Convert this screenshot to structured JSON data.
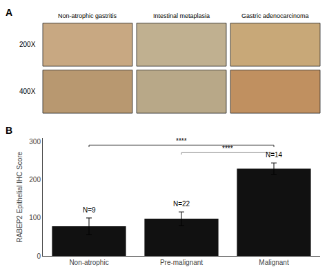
{
  "chart_data": {
    "type": "bar",
    "categories": [
      "Non-atrophic",
      "Pre-malignant",
      "Malignant"
    ],
    "values": [
      78,
      98,
      230
    ],
    "errors": [
      22,
      18,
      15
    ],
    "n_labels": [
      "N=9",
      "N=22",
      "N=14"
    ],
    "color": "#111111",
    "ylabel": "RABEP2 Epithelial IHC Score",
    "ylim": [
      0,
      310
    ],
    "yticks": [
      0,
      100,
      200,
      300
    ],
    "grid": false,
    "significance": [
      {
        "from": "Non-atrophic",
        "to": "Malignant",
        "y": 292,
        "label": "****",
        "color": "#333333"
      },
      {
        "from": "Pre-malignant",
        "to": "Malignant",
        "y": 272,
        "label": "****",
        "color": "#888888"
      }
    ],
    "panel_labels": [
      "A",
      "B"
    ],
    "column_labels": [
      "Non-atrophic gastritis",
      "Intestinal metaplasia",
      "Gastric adenocarcinoma"
    ],
    "row_labels": [
      "200X",
      "400X"
    ]
  }
}
